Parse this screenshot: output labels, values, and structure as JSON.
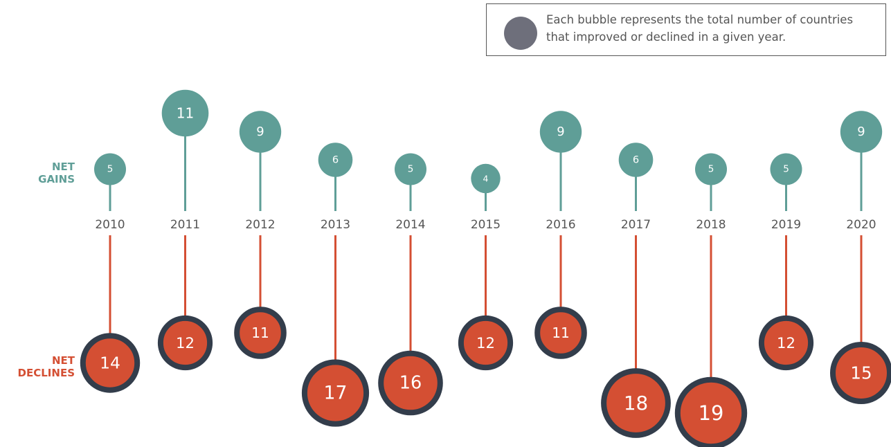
{
  "chart_data": {
    "type": "bubble",
    "annotation": "Each bubble represents the total number of countries that improved or declined in a given year.",
    "categories": [
      "2010",
      "2011",
      "2012",
      "2013",
      "2014",
      "2015",
      "2016",
      "2017",
      "2018",
      "2019",
      "2020"
    ],
    "series": [
      {
        "name": "NET GAINS",
        "color": "#5f9e97",
        "values": [
          5,
          11,
          9,
          6,
          5,
          4,
          9,
          6,
          5,
          5,
          9
        ]
      },
      {
        "name": "NET DECLINES",
        "color": "#d44f33",
        "values": [
          14,
          12,
          11,
          17,
          16,
          12,
          11,
          18,
          19,
          12,
          15
        ]
      }
    ]
  }
}
